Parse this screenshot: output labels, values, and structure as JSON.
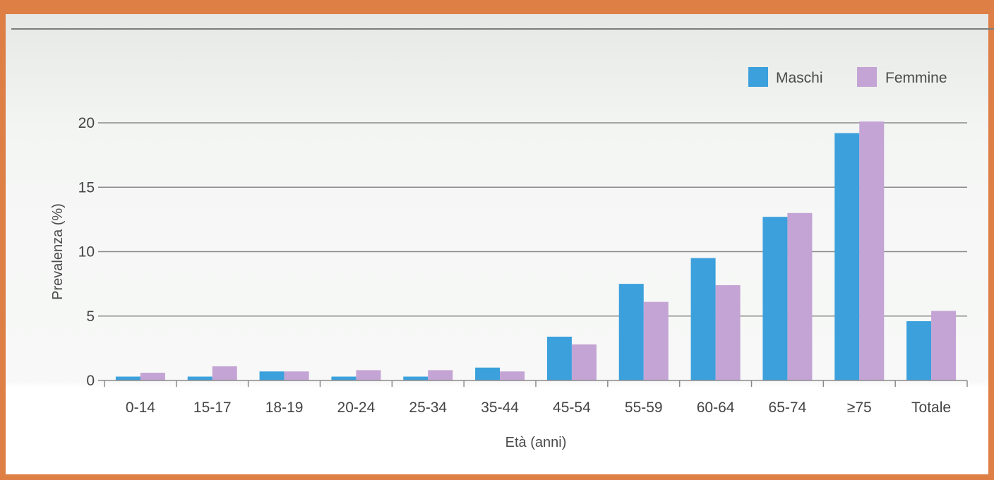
{
  "chart_data": {
    "type": "bar",
    "categories": [
      "0-14",
      "15-17",
      "18-19",
      "20-24",
      "25-34",
      "35-44",
      "45-54",
      "55-59",
      "60-64",
      "65-74",
      "≥75",
      "Totale"
    ],
    "series": [
      {
        "name": "Maschi",
        "color": "#3ba0dc",
        "values": [
          0.3,
          0.3,
          0.7,
          0.3,
          0.3,
          1.0,
          3.4,
          7.5,
          9.5,
          12.7,
          19.2,
          4.6
        ]
      },
      {
        "name": "Femmine",
        "color": "#c4a4d4",
        "values": [
          0.6,
          1.1,
          0.7,
          0.8,
          0.8,
          0.7,
          2.8,
          6.1,
          7.4,
          13.0,
          20.1,
          5.4
        ]
      }
    ],
    "xlabel": "Età (anni)",
    "ylabel": "Prevalenza (%)",
    "ylim": [
      0,
      20
    ],
    "yticks": [
      0,
      5,
      10,
      15,
      20
    ],
    "grid": true,
    "legend_position": "top-right"
  }
}
